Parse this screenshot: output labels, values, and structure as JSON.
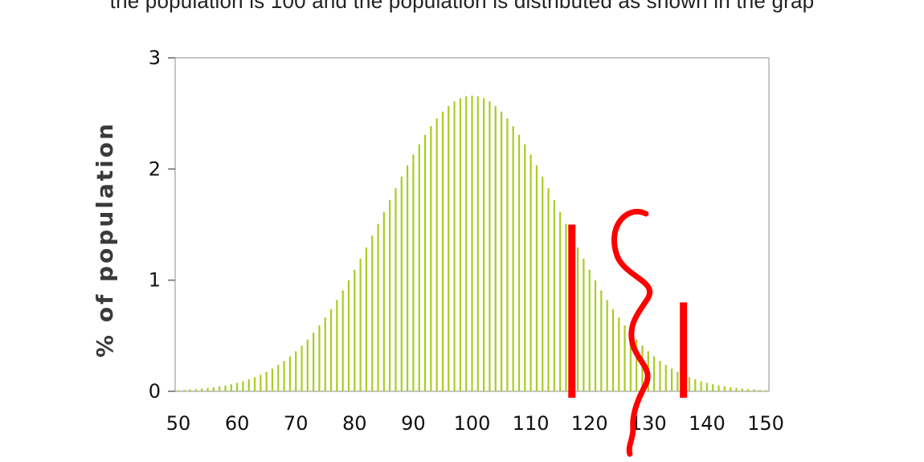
{
  "caption_text": "the population is 100 and the population is distributed as shown in the grap",
  "chart_data": {
    "type": "bar",
    "title": "",
    "xlabel": "",
    "ylabel": "% of population",
    "x_ticks": [
      "50",
      "60",
      "70",
      "80",
      "90",
      "100",
      "110",
      "120",
      "130",
      "140",
      "150"
    ],
    "y_ticks": [
      "0",
      "1",
      "2",
      "3"
    ],
    "xlim": [
      50,
      150
    ],
    "ylim": [
      0,
      3
    ],
    "x_start": 50,
    "x_end": 150,
    "mean": 100,
    "std_dev": 15,
    "peak_percent": 2.66,
    "bar_color": "#aacc22",
    "frame_color": "#b3b3b3",
    "grid": false,
    "annotations": {
      "color": "#ff0000",
      "marks": [
        {
          "type": "vertical-line",
          "x": 117,
          "y_top": 1.5
        },
        {
          "type": "wavy-line",
          "x": 127
        },
        {
          "type": "vertical-line",
          "x": 136,
          "y_top": 0.8
        }
      ]
    }
  }
}
